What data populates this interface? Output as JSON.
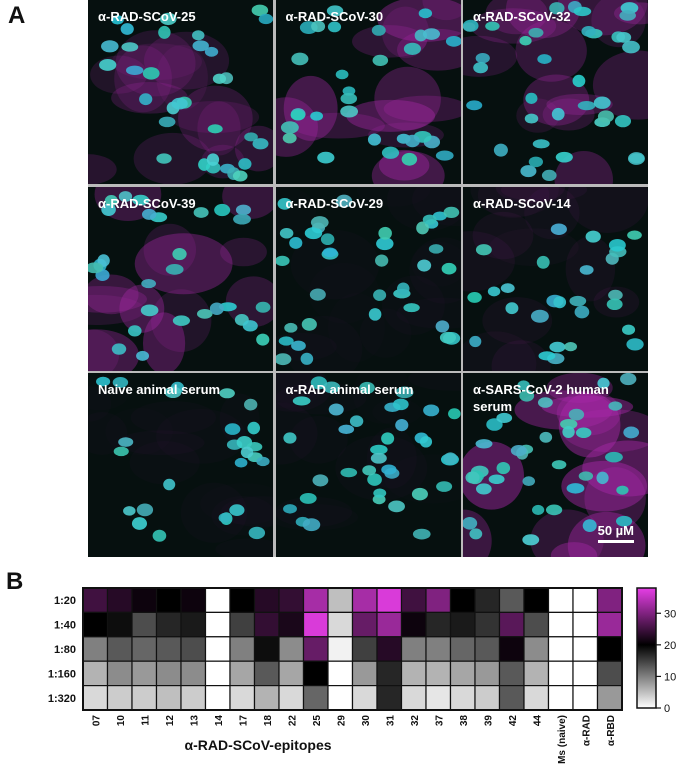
{
  "panel_a": {
    "panel_label": "A",
    "images": [
      "α-RAD-SCoV-25",
      "α-RAD-SCoV-30",
      "α-RAD-SCoV-32",
      "α-RAD-SCoV-39",
      "α-RAD-SCoV-29",
      "α-RAD-SCoV-14",
      "Naive animal serum",
      "α-RAD animal serum",
      "α-SARS-CoV-2 human serum"
    ],
    "scale_bar": "50 µM"
  },
  "chart_data": {
    "type": "heatmap",
    "panel_label": "B",
    "x_label": "α-RAD-SCoV-epitopes",
    "rows": [
      "1:20",
      "1:40",
      "1:80",
      "1:160",
      "1:320"
    ],
    "columns": [
      "07",
      "10",
      "11",
      "12",
      "13",
      "14",
      "17",
      "18",
      "22",
      "25",
      "29",
      "30",
      "31",
      "32",
      "37",
      "38",
      "39",
      "42",
      "44",
      "Ms (naive)",
      "α-RAD",
      "α-RBD"
    ],
    "values": [
      [
        25,
        23,
        21,
        20,
        21,
        0,
        20,
        23,
        24,
        33,
        5,
        33,
        37,
        25,
        30,
        20,
        17,
        13,
        20,
        0,
        0,
        30
      ],
      [
        20,
        19,
        14,
        17,
        18,
        0,
        15,
        24,
        22,
        37,
        3,
        28,
        32,
        21,
        17,
        18,
        16,
        27,
        14,
        0,
        0,
        32
      ],
      [
        10,
        13,
        12,
        13,
        14,
        0,
        10,
        19,
        9,
        28,
        1,
        15,
        23,
        10,
        10,
        12,
        13,
        21,
        9,
        0,
        0,
        20
      ],
      [
        6,
        9,
        8,
        9,
        9,
        0,
        7,
        13,
        7,
        20,
        0,
        8,
        17,
        6,
        6,
        7,
        8,
        13,
        6,
        0,
        0,
        14
      ],
      [
        3,
        4,
        4,
        5,
        4,
        0,
        3,
        6,
        3,
        12,
        0,
        3,
        17,
        3,
        2,
        3,
        4,
        13,
        3,
        0,
        0,
        8
      ]
    ],
    "colorscale": [
      [
        0,
        "#ffffff"
      ],
      [
        20,
        "#000000"
      ],
      [
        38,
        "#e63ee6"
      ]
    ],
    "zticks": [
      0,
      10,
      20,
      30
    ]
  }
}
